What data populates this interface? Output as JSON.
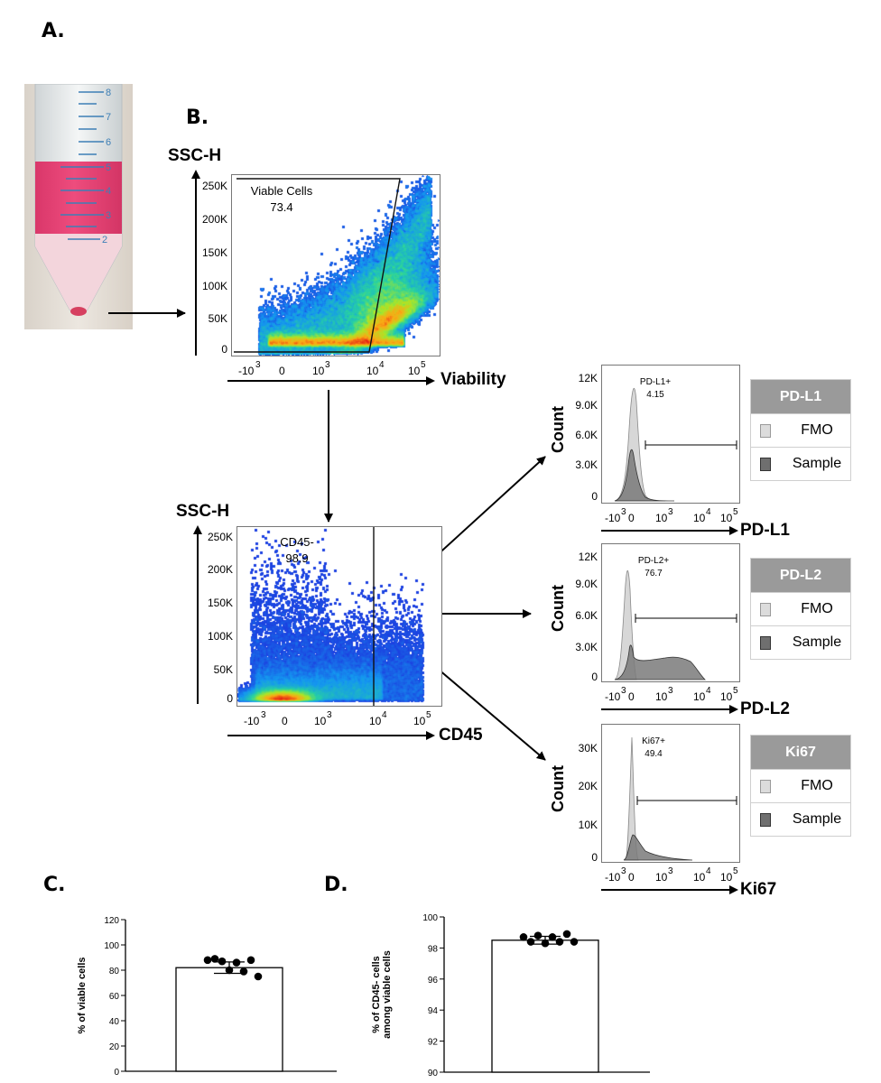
{
  "panels": {
    "A": "A.",
    "B": "B.",
    "C": "C.",
    "D": "D."
  },
  "tube": {
    "marks": [
      "8",
      "7",
      "6",
      "5",
      "4",
      "3",
      "2"
    ]
  },
  "flow": {
    "viability_plot": {
      "ylabel": "SSC-H",
      "xlabel": "Viability",
      "yticks": [
        "250K",
        "200K",
        "150K",
        "100K",
        "50K",
        "0"
      ],
      "gate_name": "Viable Cells",
      "gate_value": "73.4"
    },
    "cd45_plot": {
      "ylabel": "SSC-H",
      "xlabel": "CD45",
      "yticks": [
        "250K",
        "200K",
        "150K",
        "100K",
        "50K",
        "0"
      ],
      "gate_name": "CD45-",
      "gate_value": "98.9"
    },
    "histograms": [
      {
        "marker": "PD-L1",
        "ylabel": "Count",
        "yticks": [
          "12K",
          "9.0K",
          "6.0K",
          "3.0K",
          "0"
        ],
        "gate_name": "PD-L1+",
        "gate_value": "4.15",
        "legend": {
          "title": "PD-L1",
          "fmo": "FMO",
          "sample": "Sample"
        }
      },
      {
        "marker": "PD-L2",
        "ylabel": "Count",
        "yticks": [
          "12K",
          "9.0K",
          "6.0K",
          "3.0K",
          "0"
        ],
        "gate_name": "PD-L2+",
        "gate_value": "76.7",
        "legend": {
          "title": "PD-L2",
          "fmo": "FMO",
          "sample": "Sample"
        }
      },
      {
        "marker": "Ki67",
        "ylabel": "Count",
        "yticks": [
          "30K",
          "20K",
          "10K",
          "0"
        ],
        "gate_name": "Ki67+",
        "gate_value": "49.4",
        "legend": {
          "title": "Ki67",
          "fmo": "FMO",
          "sample": "Sample"
        }
      }
    ]
  },
  "chart_data": [
    {
      "type": "bar",
      "panel": "C",
      "ylabel": "% of viable cells",
      "ylim": [
        0,
        120
      ],
      "yticks": [
        "120",
        "100",
        "80",
        "60",
        "40",
        "20",
        "0"
      ],
      "value": 82,
      "error": 4.5,
      "points": [
        88,
        87,
        86,
        88,
        89,
        80,
        79,
        75
      ]
    },
    {
      "type": "bar",
      "panel": "D",
      "ylabel": "% of CD45- cells among viable cells",
      "ylabel_lines": [
        "% of CD45- cells",
        "among viable cells"
      ],
      "ylim": [
        90,
        100
      ],
      "yticks": [
        "100",
        "98",
        "96",
        "94",
        "92",
        "90"
      ],
      "value": 98.5,
      "error": 0.25,
      "points": [
        98.7,
        98.8,
        98.7,
        98.9,
        98.4,
        98.3,
        98.4,
        98.4
      ]
    }
  ]
}
